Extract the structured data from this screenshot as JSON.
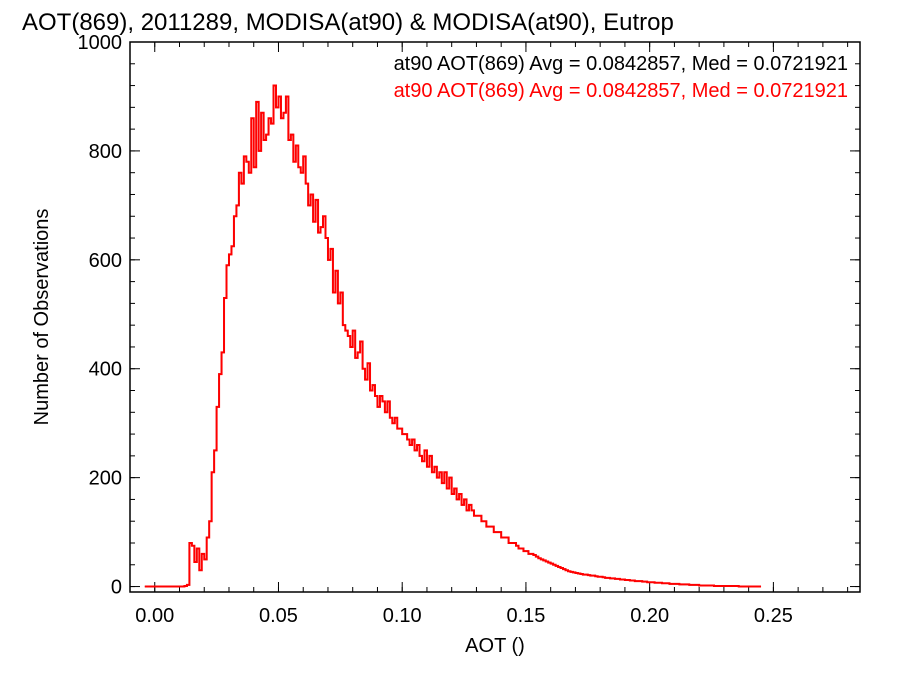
{
  "chart_data": {
    "type": "histogram",
    "title": "AOT(869), 2011289, MODISA(at90) & MODISA(at90), Eutrop",
    "xlabel": "AOT ()",
    "ylabel": "Number of Observations",
    "xlim": [
      -0.01,
      0.285
    ],
    "ylim": [
      -10,
      1000
    ],
    "xticks": [
      0.0,
      0.05,
      0.1,
      0.15,
      0.2,
      0.25
    ],
    "xtick_labels": [
      "0.00",
      "0.05",
      "0.10",
      "0.15",
      "0.20",
      "0.25"
    ],
    "yticks": [
      0,
      200,
      400,
      600,
      800,
      1000
    ],
    "ytick_labels": [
      "0",
      "200",
      "400",
      "600",
      "800",
      "1000"
    ],
    "grid": false,
    "legend_position": "top-right",
    "bin_width": 0.001,
    "bin_start": -0.004,
    "series": [
      {
        "name": "at90 AOT(869) Avg = 0.0842857, Med = 0.0721921",
        "color": "#000000",
        "values": [
          0,
          0,
          0,
          0,
          0,
          0,
          0,
          0,
          0,
          0,
          0,
          0,
          0,
          0,
          0,
          0,
          1,
          3,
          80,
          75,
          45,
          70,
          30,
          60,
          50,
          90,
          120,
          210,
          250,
          330,
          390,
          430,
          530,
          590,
          610,
          625,
          680,
          700,
          760,
          740,
          790,
          780,
          760,
          860,
          770,
          890,
          800,
          870,
          820,
          830,
          860,
          850,
          920,
          880,
          900,
          860,
          870,
          900,
          820,
          830,
          780,
          810,
          770,
          760,
          790,
          740,
          700,
          720,
          670,
          710,
          650,
          660,
          680,
          640,
          600,
          620,
          540,
          580,
          520,
          540,
          480,
          470,
          460,
          440,
          470,
          420,
          430,
          450,
          400,
          380,
          410,
          360,
          370,
          350,
          330,
          350,
          340,
          320,
          340,
          310,
          300,
          310,
          290,
          290,
          280,
          280,
          270,
          260,
          270,
          250,
          260,
          240,
          230,
          250,
          220,
          240,
          210,
          220,
          200,
          210,
          190,
          210,
          180,
          200,
          170,
          180,
          160,
          170,
          150,
          160,
          140,
          150,
          140,
          130,
          130,
          130,
          120,
          120,
          110,
          110,
          110,
          100,
          100,
          100,
          90,
          90,
          90,
          80,
          80,
          80,
          75,
          70,
          70,
          65,
          65,
          60,
          60,
          58,
          55,
          52,
          50,
          48,
          46,
          44,
          42,
          40,
          38,
          36,
          34,
          32,
          30,
          28,
          27,
          26,
          25,
          24,
          23,
          22,
          22,
          21,
          20,
          20,
          19,
          18,
          18,
          17,
          16,
          16,
          15,
          15,
          14,
          14,
          13,
          13,
          12,
          12,
          11,
          11,
          10,
          10,
          10,
          9,
          9,
          8,
          8,
          8,
          7,
          7,
          7,
          6,
          6,
          6,
          5,
          5,
          5,
          5,
          4,
          4,
          4,
          4,
          3,
          3,
          3,
          3,
          2,
          2,
          2,
          2,
          2,
          2,
          1,
          1,
          1,
          1,
          1,
          1,
          1,
          1,
          1,
          1,
          0,
          0,
          0,
          0,
          0,
          0,
          0,
          0,
          0
        ]
      },
      {
        "name": "at90 AOT(869) Avg = 0.0842857, Med = 0.0721921",
        "color": "#ff0000",
        "values": [
          0,
          0,
          0,
          0,
          0,
          0,
          0,
          0,
          0,
          0,
          0,
          0,
          0,
          0,
          0,
          0,
          1,
          3,
          80,
          75,
          45,
          70,
          30,
          60,
          50,
          90,
          120,
          210,
          250,
          330,
          390,
          430,
          530,
          590,
          610,
          625,
          680,
          700,
          760,
          740,
          790,
          780,
          760,
          860,
          770,
          890,
          800,
          870,
          820,
          830,
          860,
          850,
          920,
          880,
          900,
          860,
          870,
          900,
          820,
          830,
          780,
          810,
          770,
          760,
          790,
          740,
          700,
          720,
          670,
          710,
          650,
          660,
          680,
          640,
          600,
          620,
          540,
          580,
          520,
          540,
          480,
          470,
          460,
          440,
          470,
          420,
          430,
          450,
          400,
          380,
          410,
          360,
          370,
          350,
          330,
          350,
          340,
          320,
          340,
          310,
          300,
          310,
          290,
          290,
          280,
          280,
          270,
          260,
          270,
          250,
          260,
          240,
          230,
          250,
          220,
          240,
          210,
          220,
          200,
          210,
          190,
          210,
          180,
          200,
          170,
          180,
          160,
          170,
          150,
          160,
          140,
          150,
          140,
          130,
          130,
          130,
          120,
          120,
          110,
          110,
          110,
          100,
          100,
          100,
          90,
          90,
          90,
          80,
          80,
          80,
          75,
          70,
          70,
          65,
          65,
          60,
          60,
          58,
          55,
          52,
          50,
          48,
          46,
          44,
          42,
          40,
          38,
          36,
          34,
          32,
          30,
          28,
          27,
          26,
          25,
          24,
          23,
          22,
          22,
          21,
          20,
          20,
          19,
          18,
          18,
          17,
          16,
          16,
          15,
          15,
          14,
          14,
          13,
          13,
          12,
          12,
          11,
          11,
          10,
          10,
          10,
          9,
          9,
          8,
          8,
          8,
          7,
          7,
          7,
          6,
          6,
          6,
          5,
          5,
          5,
          5,
          4,
          4,
          4,
          4,
          3,
          3,
          3,
          3,
          2,
          2,
          2,
          2,
          2,
          2,
          1,
          1,
          1,
          1,
          1,
          1,
          1,
          1,
          1,
          1,
          0,
          0,
          0,
          0,
          0,
          0,
          0,
          0,
          0
        ]
      }
    ]
  }
}
